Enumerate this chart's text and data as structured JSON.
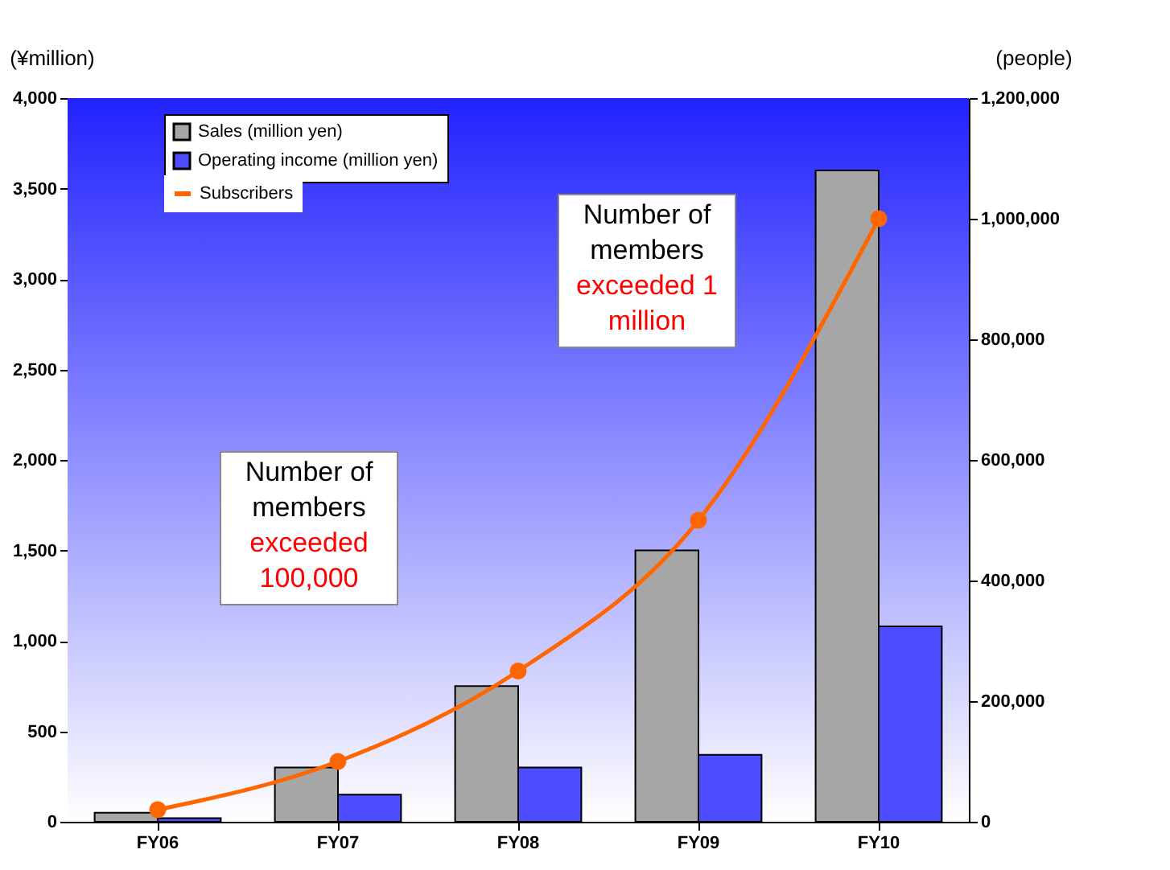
{
  "chart_data": {
    "type": "bar",
    "categories": [
      "FY06",
      "FY07",
      "FY08",
      "FY09",
      "FY10"
    ],
    "ylabel": "(¥million)",
    "y2label": "(people)",
    "ylim": [
      0,
      4000
    ],
    "yticks": [
      0,
      500,
      {
        "value": 1000,
        "label": "1,000"
      },
      {
        "value": 1500,
        "label": "1,500"
      },
      {
        "value": 2000,
        "label": "2,000"
      },
      {
        "value": 2500,
        "label": "2,500"
      },
      {
        "value": 3000,
        "label": "3,000"
      },
      {
        "value": 3500,
        "label": "3,500"
      },
      {
        "value": 4000,
        "label": "4,000"
      }
    ],
    "y2lim": [
      0,
      1200000
    ],
    "y2ticks": [
      0,
      {
        "value": 200000,
        "label": "200,000"
      },
      {
        "value": 400000,
        "label": "400,000"
      },
      {
        "value": 600000,
        "label": "600,000"
      },
      {
        "value": 800000,
        "label": "800,000"
      },
      {
        "value": 1000000,
        "label": "1,000,000"
      },
      {
        "value": 1200000,
        "label": "1,200,000"
      }
    ],
    "series": [
      {
        "name": "Sales (million yen)",
        "color": "#a6a6a6",
        "values": [
          50,
          300,
          750,
          1500,
          3600
        ]
      },
      {
        "name": "Operating income (million yen)",
        "color": "#4d4dff",
        "values": [
          20,
          150,
          300,
          370,
          1080
        ]
      },
      {
        "name": "Subscribers",
        "type": "line",
        "axis": "y2",
        "color": "#ff6600",
        "values": [
          20000,
          100000,
          250000,
          500000,
          1000000
        ]
      }
    ],
    "marker": "circle",
    "legend": "top left",
    "grid": false,
    "annotations": [
      "Number of members exceeded 100,000",
      "Number of members exceeded 1 million"
    ]
  }
}
